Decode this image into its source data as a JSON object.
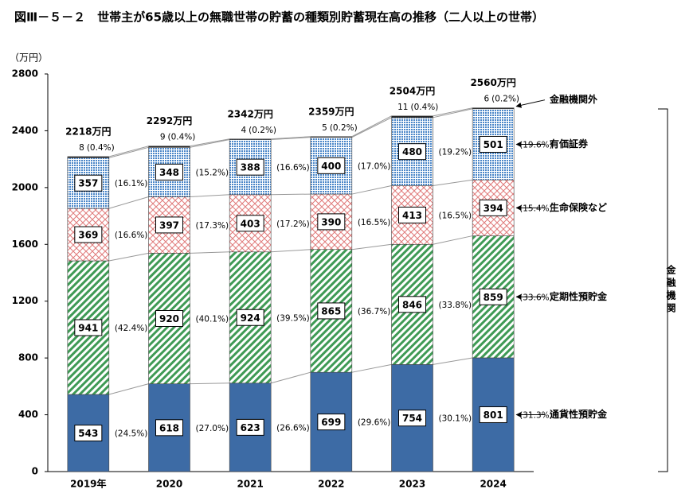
{
  "chart_data": {
    "type": "stacked_bar",
    "title": "図Ⅲ－５－２　世帯主が65歳以上の無職世帯の貯蓄の種類別貯蓄現在高の推移（二人以上の世帯）",
    "y_unit": "（万円）",
    "categories": [
      "2019年",
      "2020",
      "2021",
      "2022",
      "2023",
      "2024"
    ],
    "ylim": [
      0,
      2800
    ],
    "yticks": [
      0,
      400,
      800,
      1200,
      1600,
      2000,
      2400,
      2800
    ],
    "series": [
      {
        "name": "通貨性預貯金",
        "color": "#3d6ba5",
        "pattern": "solid",
        "values": [
          543,
          618,
          623,
          699,
          754,
          801
        ],
        "shares": [
          24.5,
          27.0,
          26.6,
          29.6,
          30.1,
          31.3
        ],
        "share_labels": [
          "(24.5%)",
          "(27.0%)",
          "(26.6%)",
          "(29.6%)",
          "(30.1%)",
          "(31.3%)"
        ]
      },
      {
        "name": "定期性預貯金",
        "color": "#3f9a55",
        "pattern": "stripes",
        "values": [
          941,
          920,
          924,
          865,
          846,
          859
        ],
        "shares": [
          42.4,
          40.1,
          39.5,
          36.7,
          33.8,
          33.6
        ],
        "share_labels": [
          "(42.4%)",
          "(40.1%)",
          "(39.5%)",
          "(36.7%)",
          "(33.8%)",
          "(33.6%)"
        ]
      },
      {
        "name": "生命保険など",
        "color": "#e07a7a",
        "pattern": "crosshatch",
        "values": [
          369,
          397,
          403,
          390,
          413,
          394
        ],
        "shares": [
          16.6,
          17.3,
          17.2,
          16.5,
          16.5,
          15.4
        ],
        "share_labels": [
          "(16.6%)",
          "(17.3%)",
          "(17.2%)",
          "(16.5%)",
          "(16.5%)",
          "(15.4%)"
        ]
      },
      {
        "name": "有価証券",
        "color": "#4a86c8",
        "pattern": "dots",
        "values": [
          357,
          348,
          388,
          400,
          480,
          501
        ],
        "shares": [
          16.1,
          15.2,
          16.6,
          17.0,
          19.2,
          19.6
        ],
        "share_labels": [
          "(16.1%)",
          "(15.2%)",
          "(16.6%)",
          "(17.0%)",
          "(19.2%)",
          "(19.6%)"
        ]
      },
      {
        "name": "金融機関外",
        "color": "#222222",
        "pattern": "solid",
        "values": [
          8,
          9,
          4,
          5,
          11,
          6
        ],
        "shares": [
          0.4,
          0.4,
          0.2,
          0.2,
          0.4,
          0.2
        ],
        "share_labels": [
          "(0.4%)",
          "(0.4%)",
          "(0.2%)",
          "(0.2%)",
          "(0.4%)",
          "(0.2%)"
        ]
      }
    ],
    "totals": [
      2218,
      2292,
      2342,
      2359,
      2504,
      2560
    ],
    "total_labels": [
      "2218万円",
      "2292万円",
      "2342万円",
      "2359万円",
      "2504万円",
      "2560万円"
    ],
    "bracket_label": "金融機関"
  }
}
